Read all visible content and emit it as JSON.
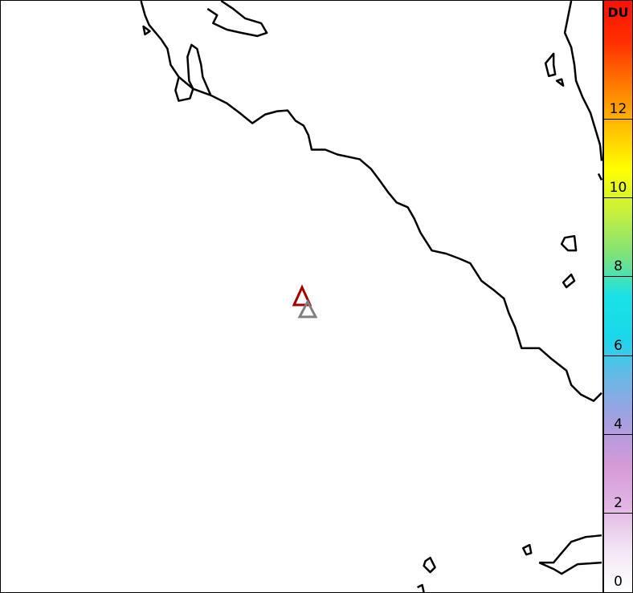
{
  "map": {
    "variable_unit": "DU",
    "colorbar": {
      "range": [
        0,
        15
      ],
      "ticks": [
        "0",
        "2",
        "4",
        "6",
        "8",
        "10",
        "12"
      ],
      "tick_values": [
        0,
        2,
        4,
        6,
        8,
        10,
        12
      ],
      "colors": [
        "#ffffff",
        "#f3e6f5",
        "#e2b6e4",
        "#d49ad8",
        "#a99ee0",
        "#6fb5e6",
        "#1dd6ea",
        "#18e2e8",
        "#7ee27a",
        "#c8f03c",
        "#ffff00",
        "#ffc000",
        "#ff7a00",
        "#ff3000",
        "#ff1000"
      ]
    },
    "markers": [
      {
        "name": "volcano-primary",
        "color": "#a00000"
      },
      {
        "name": "volcano-secondary",
        "color": "#808080"
      }
    ],
    "coastline_color": "#000000",
    "pixel_color": "#d9a6dc"
  }
}
